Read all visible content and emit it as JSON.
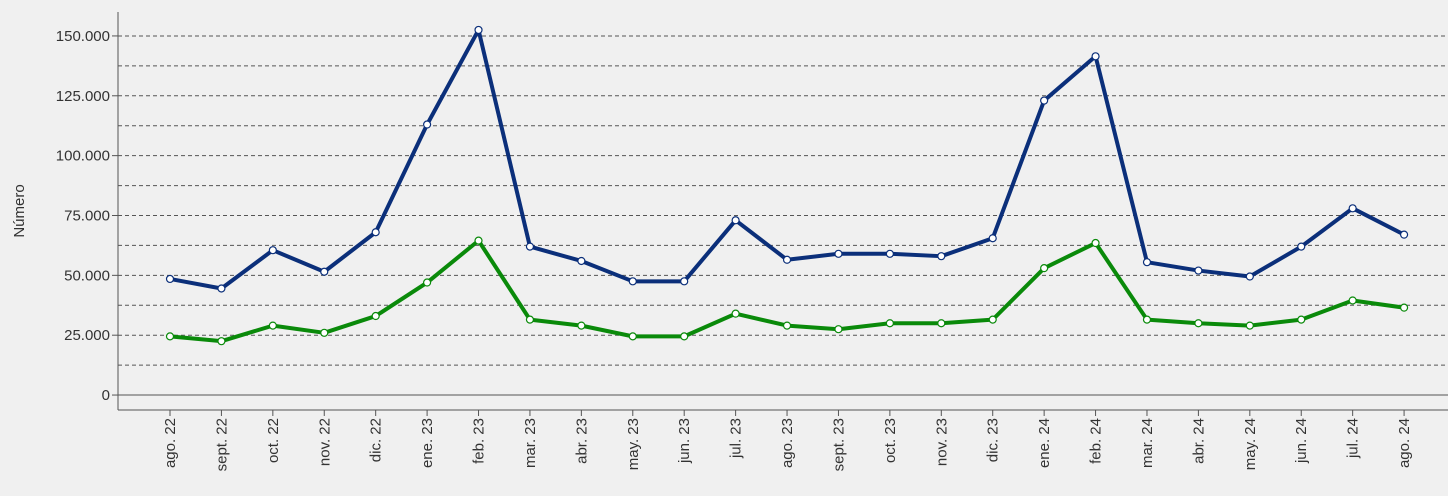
{
  "chart_data": {
    "type": "line",
    "ylabel": "Número",
    "categories": [
      "ago. 22",
      "sept. 22",
      "oct. 22",
      "nov. 22",
      "dic. 22",
      "ene. 23",
      "feb. 23",
      "mar. 23",
      "abr. 23",
      "may. 23",
      "jun. 23",
      "jul. 23",
      "ago. 23",
      "sept. 23",
      "oct. 23",
      "nov. 23",
      "dic. 23",
      "ene. 24",
      "feb. 24",
      "mar. 24",
      "abr. 24",
      "may. 24",
      "jun. 24",
      "jul. 24",
      "ago. 24"
    ],
    "series": [
      {
        "color": "#0b2f7a",
        "values": [
          48500,
          44500,
          60500,
          51500,
          68000,
          113000,
          152500,
          62000,
          56000,
          47500,
          47500,
          73000,
          56500,
          59000,
          59000,
          58000,
          65500,
          123000,
          141500,
          55500,
          52000,
          49500,
          62000,
          78000,
          67000
        ]
      },
      {
        "color": "#0a8a0a",
        "values": [
          24500,
          22500,
          29000,
          26000,
          33000,
          47000,
          64500,
          31500,
          29000,
          24500,
          24500,
          34000,
          29000,
          27500,
          30000,
          30000,
          31500,
          53000,
          63500,
          31500,
          30000,
          29000,
          31500,
          39500,
          36500
        ]
      }
    ],
    "ylim": [
      -6250,
      160000
    ],
    "yticks": [
      {
        "value": 0,
        "label": "0"
      },
      {
        "value": 25000,
        "label": "25.000"
      },
      {
        "value": 50000,
        "label": "50.000"
      },
      {
        "value": 75000,
        "label": "75.000"
      },
      {
        "value": 100000,
        "label": "100.000"
      },
      {
        "value": 125000,
        "label": "125.000"
      },
      {
        "value": 150000,
        "label": "150.000"
      }
    ],
    "yminor": [
      12500,
      37500,
      62500,
      87500,
      112500,
      137500
    ],
    "grid": true
  }
}
